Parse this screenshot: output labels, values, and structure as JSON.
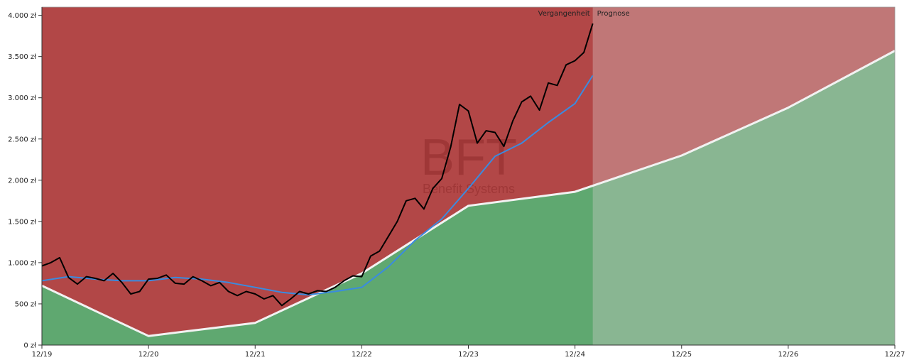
{
  "chart_data": {
    "type": "area",
    "title": "",
    "xlabel": "",
    "ylabel": "",
    "x_ticks": [
      "12/19",
      "12/20",
      "12/21",
      "12/22",
      "12/23",
      "12/24",
      "12/25",
      "12/26",
      "12/27"
    ],
    "y_ticks": [
      "0 zł",
      "500 zł",
      "1.000 zł",
      "1.500 zł",
      "2.000 zł",
      "2.500 zł",
      "3.000 zł",
      "3.500 zł",
      "4.000 zł"
    ],
    "ylim": [
      0,
      4100
    ],
    "xlim": [
      "2019-12",
      "2027-12"
    ],
    "grid": false,
    "region_labels": {
      "past": "Vergangenheit",
      "forecast": "Prognose"
    },
    "forecast_start": "2025-02",
    "watermark": {
      "title": "BFT",
      "subtitle": "Benefit Systems"
    },
    "colors": {
      "overvalued_area": "#b24747",
      "undervalued_area": "#5fa870",
      "forecast_overlay": "#d9d0d0",
      "fair_value_line": "#f2f2f2",
      "price_line": "#000000",
      "moving_average_line": "#3a8be0"
    },
    "series": [
      {
        "role": "fair_value",
        "x": [
          "2019-12",
          "2020-12",
          "2021-12",
          "2022-12",
          "2023-12",
          "2024-12",
          "2025-12",
          "2026-12",
          "2027-12"
        ],
        "values": [
          720,
          110,
          270,
          870,
          1690,
          1860,
          2300,
          2880,
          3570
        ]
      },
      {
        "role": "price",
        "x": [
          "2019-12",
          "2020-01",
          "2020-02",
          "2020-03",
          "2020-04",
          "2020-05",
          "2020-06",
          "2020-07",
          "2020-08",
          "2020-09",
          "2020-10",
          "2020-11",
          "2020-12",
          "2021-01",
          "2021-02",
          "2021-03",
          "2021-04",
          "2021-05",
          "2021-06",
          "2021-07",
          "2021-08",
          "2021-09",
          "2021-10",
          "2021-11",
          "2021-12",
          "2022-01",
          "2022-02",
          "2022-03",
          "2022-04",
          "2022-05",
          "2022-06",
          "2022-07",
          "2022-08",
          "2022-09",
          "2022-10",
          "2022-11",
          "2022-12",
          "2023-01",
          "2023-02",
          "2023-03",
          "2023-04",
          "2023-05",
          "2023-06",
          "2023-07",
          "2023-08",
          "2023-09",
          "2023-10",
          "2023-11",
          "2023-12",
          "2024-01",
          "2024-02",
          "2024-03",
          "2024-04",
          "2024-05",
          "2024-06",
          "2024-07",
          "2024-08",
          "2024-09",
          "2024-10",
          "2024-11",
          "2024-12",
          "2025-01",
          "2025-02"
        ],
        "values": [
          960,
          1000,
          1060,
          820,
          740,
          830,
          810,
          780,
          870,
          760,
          620,
          650,
          800,
          810,
          850,
          750,
          740,
          830,
          780,
          720,
          760,
          650,
          600,
          650,
          620,
          560,
          600,
          480,
          560,
          650,
          620,
          660,
          650,
          700,
          780,
          840,
          830,
          1080,
          1140,
          1320,
          1500,
          1750,
          1780,
          1650,
          1900,
          2020,
          2400,
          2920,
          2840,
          2450,
          2600,
          2580,
          2410,
          2720,
          2950,
          3020,
          2850,
          3180,
          3150,
          3400,
          3450,
          3550,
          3900
        ]
      },
      {
        "role": "moving_average",
        "x": [
          "2019-12",
          "2020-03",
          "2020-06",
          "2020-09",
          "2020-12",
          "2021-03",
          "2021-06",
          "2021-09",
          "2021-12",
          "2022-03",
          "2022-06",
          "2022-09",
          "2022-12",
          "2023-03",
          "2023-06",
          "2023-09",
          "2023-12",
          "2024-03",
          "2024-06",
          "2024-09",
          "2024-12",
          "2025-02"
        ],
        "values": [
          780,
          830,
          800,
          780,
          780,
          820,
          800,
          760,
          700,
          640,
          610,
          650,
          700,
          950,
          1270,
          1530,
          1900,
          2290,
          2450,
          2700,
          2930,
          3270
        ]
      }
    ]
  }
}
